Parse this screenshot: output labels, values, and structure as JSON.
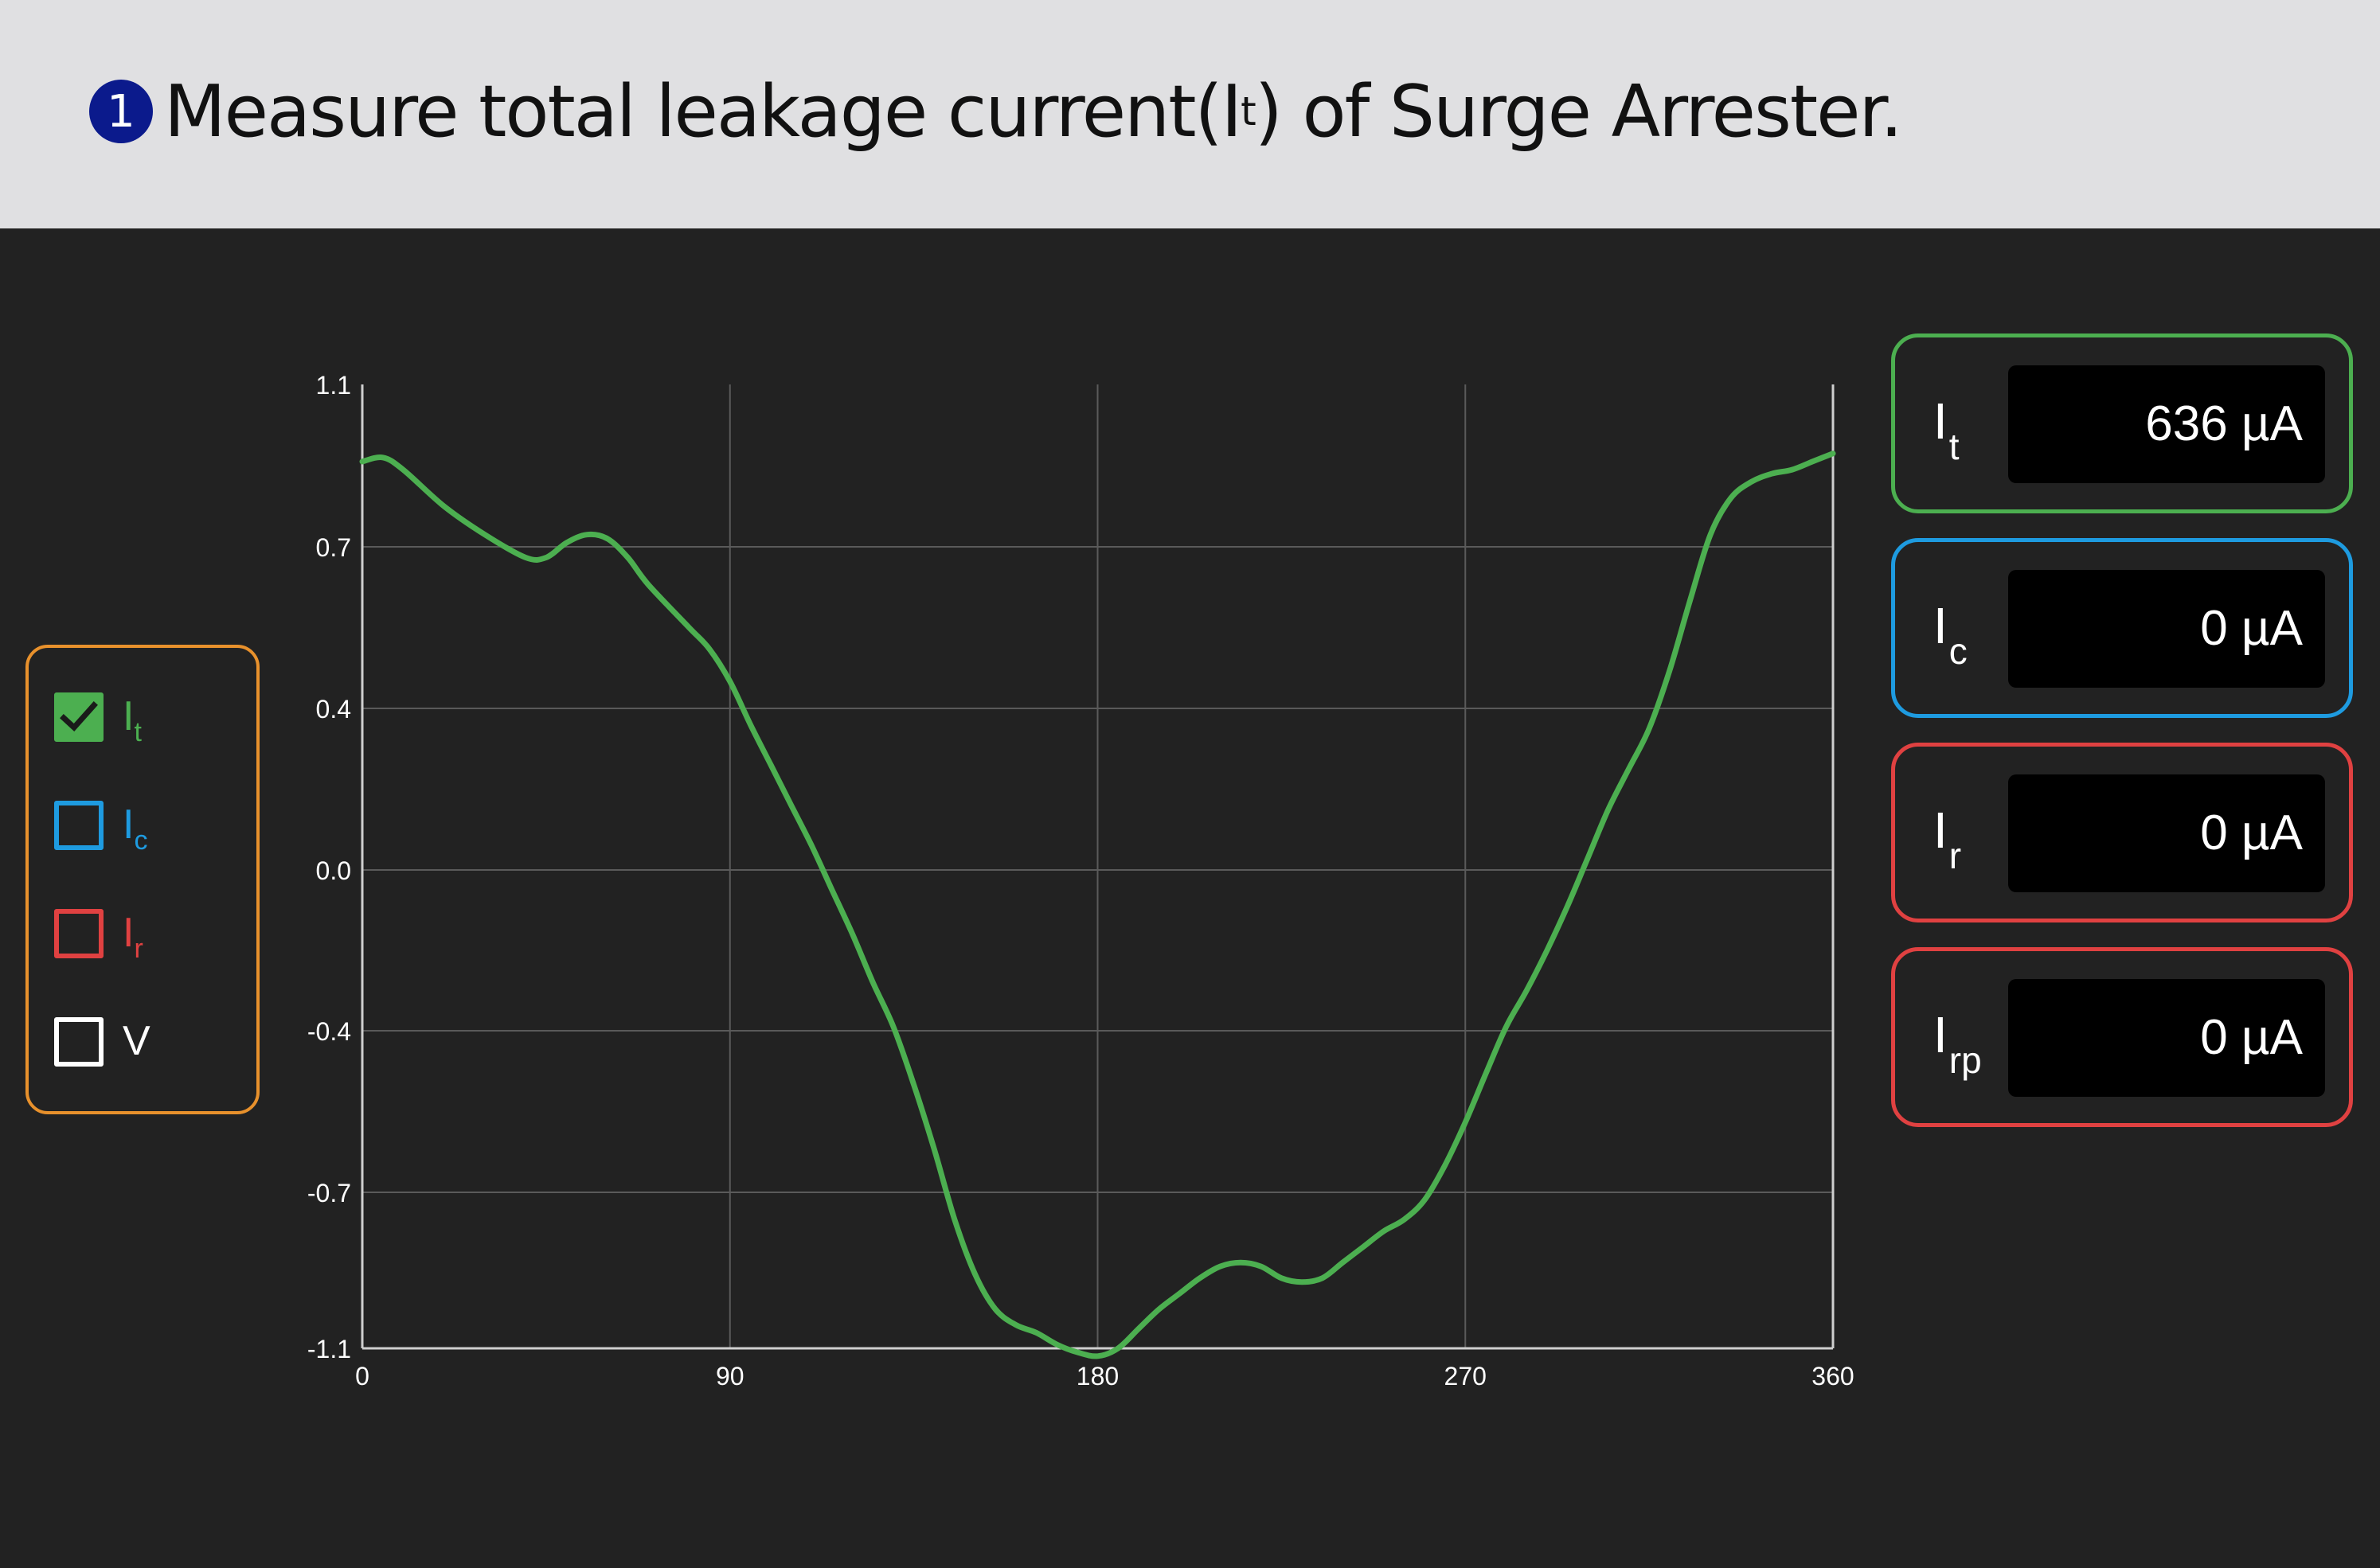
{
  "banner": {
    "step_number": "1",
    "title_prefix": "Measure total leakage current",
    "title_paren_open": "(I",
    "title_sub": "t",
    "title_paren_close": ")",
    "title_suffix": " of Surge Arrester."
  },
  "legend": {
    "items": [
      {
        "label": "I",
        "sub": "t",
        "checked": true,
        "color": "#4caf50"
      },
      {
        "label": "I",
        "sub": "c",
        "checked": false,
        "color": "#1e9be0"
      },
      {
        "label": "I",
        "sub": "r",
        "checked": false,
        "color": "#e04141"
      },
      {
        "label": "V",
        "sub": "",
        "checked": false,
        "color": "#ffffff"
      }
    ],
    "border_color": "#e8912c"
  },
  "readouts": [
    {
      "label": "I",
      "sub": "t",
      "value": "636 µA",
      "color": "#4caf50"
    },
    {
      "label": "I",
      "sub": "c",
      "value": "0 µA",
      "color": "#1e9be0"
    },
    {
      "label": "I",
      "sub": "r",
      "value": "0 µA",
      "color": "#e04141"
    },
    {
      "label": "I",
      "sub": "rp",
      "value": "0 µA",
      "color": "#e04141"
    }
  ],
  "chart_data": {
    "type": "line",
    "x_ticks": [
      "0",
      "90",
      "180",
      "270",
      "360"
    ],
    "y_ticks": [
      "1.1",
      "0.7",
      "0.4",
      "0.0",
      "-0.4",
      "-0.7",
      "-1.1"
    ],
    "xlim": [
      0,
      360
    ],
    "ylim": [
      -1.1,
      1.1
    ],
    "grid": true,
    "series": [
      {
        "color": "#4caf50",
        "x": [
          0,
          5,
          10,
          20,
          30,
          40,
          45,
          50,
          55,
          60,
          65,
          70,
          80,
          85,
          90,
          95,
          100,
          105,
          110,
          115,
          120,
          125,
          130,
          135,
          140,
          145,
          150,
          155,
          160,
          165,
          170,
          175,
          180,
          185,
          190,
          195,
          200,
          205,
          210,
          215,
          220,
          225,
          230,
          235,
          240,
          245,
          250,
          255,
          260,
          265,
          270,
          275,
          280,
          285,
          290,
          295,
          300,
          305,
          310,
          315,
          320,
          325,
          330,
          335,
          340,
          345,
          350,
          355,
          360
        ],
        "y": [
          0.91,
          0.92,
          0.89,
          0.8,
          0.73,
          0.68,
          0.68,
          0.71,
          0.73,
          0.72,
          0.68,
          0.63,
          0.55,
          0.51,
          0.45,
          0.36,
          0.26,
          0.16,
          0.06,
          -0.05,
          -0.16,
          -0.28,
          -0.39,
          -0.5,
          -0.62,
          -0.77,
          -0.91,
          -1.0,
          -1.04,
          -1.06,
          -1.09,
          -1.11,
          -1.12,
          -1.1,
          -1.05,
          -1.0,
          -0.96,
          -0.92,
          -0.89,
          -0.88,
          -0.89,
          -0.92,
          -0.93,
          -0.92,
          -0.88,
          -0.84,
          -0.8,
          -0.77,
          -0.72,
          -0.65,
          -0.57,
          -0.48,
          -0.39,
          -0.3,
          -0.2,
          -0.09,
          0.03,
          0.15,
          0.25,
          0.35,
          0.47,
          0.6,
          0.73,
          0.82,
          0.86,
          0.88,
          0.89,
          0.91,
          0.93
        ]
      }
    ]
  }
}
